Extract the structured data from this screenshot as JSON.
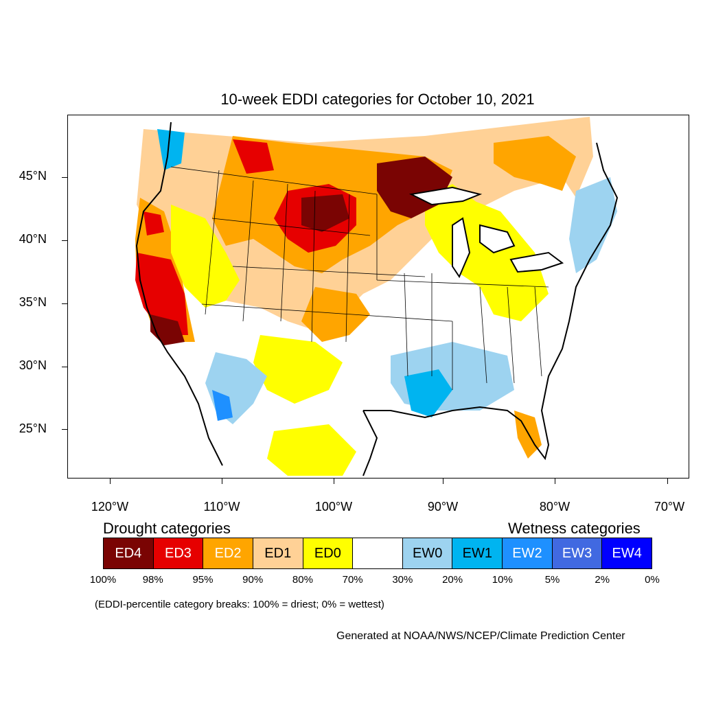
{
  "title": "10-week EDDI categories for October 10, 2021",
  "lat_labels": [
    "45°N",
    "40°N",
    "35°N",
    "30°N",
    "25°N"
  ],
  "lon_labels": [
    "120°W",
    "110°W",
    "100°W",
    "90°W",
    "80°W",
    "70°W"
  ],
  "legend": {
    "drought_heading": "Drought categories",
    "wetness_heading": "Wetness categories",
    "categories": [
      {
        "label": "ED4",
        "color": "#7a0403"
      },
      {
        "label": "ED3",
        "color": "#e60000"
      },
      {
        "label": "ED2",
        "color": "#ffa500"
      },
      {
        "label": "ED1",
        "color": "#ffd196"
      },
      {
        "label": "ED0",
        "color": "#ffff00"
      },
      {
        "label": "",
        "color": "#ffffff"
      },
      {
        "label": "EW0",
        "color": "#9dd3f0"
      },
      {
        "label": "EW1",
        "color": "#00b4f0"
      },
      {
        "label": "EW2",
        "color": "#1e90ff"
      },
      {
        "label": "EW3",
        "color": "#4169e1"
      },
      {
        "label": "EW4",
        "color": "#0000ff"
      }
    ],
    "breaks": [
      "100%",
      "98%",
      "95%",
      "90%",
      "80%",
      "70%",
      "30%",
      "20%",
      "10%",
      "5%",
      "2%",
      "0%"
    ]
  },
  "note": "(EDDI-percentile category breaks: 100% = driest; 0% = wettest)",
  "credit": "Generated at NOAA/NWS/NCEP/Climate Prediction Center"
}
